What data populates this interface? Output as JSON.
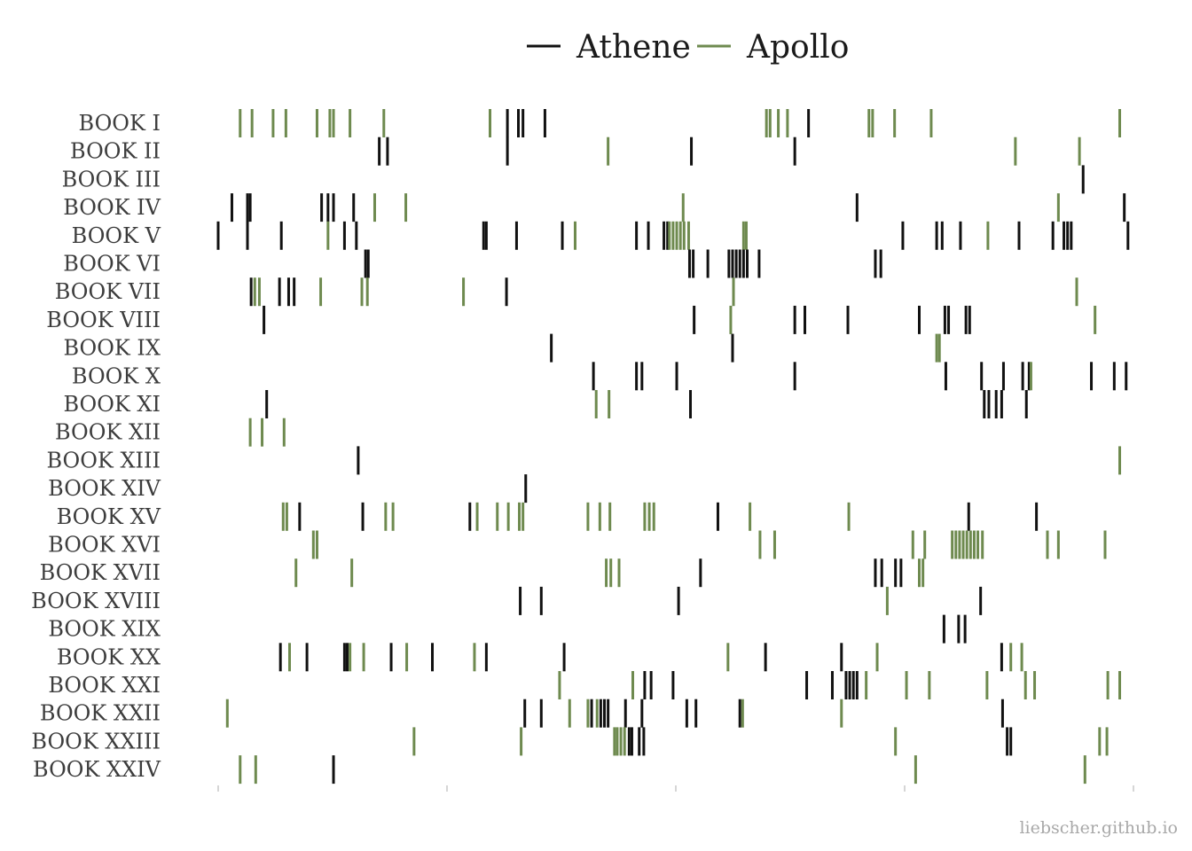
{
  "credit": "liebscher.github.io",
  "colors": {
    "athene": "#111111",
    "apollo": "#6e8a4f",
    "axis": "#bbbbbb"
  },
  "chart_data": {
    "type": "event-plot",
    "xlim": [
      0,
      1
    ],
    "x_ticks": [
      0,
      0.25,
      0.5,
      0.75,
      1
    ],
    "legend": {
      "placement": "top-center"
    },
    "grid": false,
    "series": [
      {
        "name": "Athene",
        "key": "athene"
      },
      {
        "name": "Apollo",
        "key": "apollo"
      }
    ],
    "books": [
      {
        "label": "BOOK I",
        "athene": [
          0.316,
          0.328,
          0.333,
          0.357,
          0.645
        ],
        "apollo": [
          0.024,
          0.037,
          0.06,
          0.074,
          0.108,
          0.122,
          0.126,
          0.144,
          0.181,
          0.297,
          0.599,
          0.603,
          0.612,
          0.622,
          0.711,
          0.715,
          0.739,
          0.779,
          0.985
        ]
      },
      {
        "label": "BOOK II",
        "athene": [
          0.176,
          0.185,
          0.316,
          0.517,
          0.63
        ],
        "apollo": [
          0.426,
          0.871,
          0.941
        ]
      },
      {
        "label": "BOOK III",
        "athene": [
          0.945
        ],
        "apollo": []
      },
      {
        "label": "BOOK IV",
        "athene": [
          0.015,
          0.032,
          0.035,
          0.113,
          0.12,
          0.126,
          0.148,
          0.698,
          0.99
        ],
        "apollo": [
          0.171,
          0.205,
          0.508,
          0.918
        ]
      },
      {
        "label": "BOOK V",
        "athene": [
          0.0,
          0.032,
          0.069,
          0.138,
          0.151,
          0.29,
          0.293,
          0.326,
          0.376,
          0.457,
          0.47,
          0.487,
          0.491,
          0.748,
          0.785,
          0.791,
          0.811,
          0.875,
          0.912,
          0.924,
          0.928,
          0.932,
          0.994
        ],
        "apollo": [
          0.12,
          0.39,
          0.493,
          0.497,
          0.501,
          0.505,
          0.509,
          0.514,
          0.574,
          0.577,
          0.841
        ]
      },
      {
        "label": "BOOK VI",
        "athene": [
          0.161,
          0.164,
          0.515,
          0.519,
          0.535,
          0.558,
          0.562,
          0.566,
          0.57,
          0.574,
          0.578,
          0.591,
          0.718,
          0.724
        ],
        "apollo": []
      },
      {
        "label": "BOOK VII",
        "athene": [
          0.036,
          0.067,
          0.077,
          0.083,
          0.315
        ],
        "apollo": [
          0.04,
          0.045,
          0.112,
          0.157,
          0.163,
          0.268,
          0.563,
          0.938
        ]
      },
      {
        "label": "BOOK VIII",
        "athene": [
          0.05,
          0.52,
          0.63,
          0.641,
          0.688,
          0.766,
          0.794,
          0.798,
          0.817,
          0.821
        ],
        "apollo": [
          0.56,
          0.958
        ]
      },
      {
        "label": "BOOK IX",
        "athene": [
          0.364,
          0.562
        ],
        "apollo": [
          0.785,
          0.788
        ]
      },
      {
        "label": "BOOK X",
        "athene": [
          0.41,
          0.457,
          0.463,
          0.501,
          0.63,
          0.795,
          0.834,
          0.858,
          0.879,
          0.886,
          0.954,
          0.979,
          0.992
        ],
        "apollo": [
          0.888
        ]
      },
      {
        "label": "BOOK XI",
        "athene": [
          0.053,
          0.516,
          0.837,
          0.842,
          0.85,
          0.856,
          0.883
        ],
        "apollo": [
          0.413,
          0.427
        ]
      },
      {
        "label": "BOOK XII",
        "athene": [],
        "apollo": [
          0.035,
          0.048,
          0.072
        ]
      },
      {
        "label": "BOOK XIII",
        "athene": [
          0.153
        ],
        "apollo": [
          0.985
        ]
      },
      {
        "label": "BOOK XIV",
        "athene": [
          0.336
        ],
        "apollo": []
      },
      {
        "label": "BOOK XV",
        "athene": [
          0.089,
          0.158,
          0.275,
          0.546,
          0.82,
          0.894
        ],
        "apollo": [
          0.071,
          0.075,
          0.183,
          0.191,
          0.283,
          0.305,
          0.317,
          0.329,
          0.333,
          0.404,
          0.417,
          0.428,
          0.466,
          0.471,
          0.476,
          0.581,
          0.689
        ]
      },
      {
        "label": "BOOK XVI",
        "athene": [],
        "apollo": [
          0.104,
          0.108,
          0.592,
          0.608,
          0.759,
          0.772,
          0.802,
          0.806,
          0.81,
          0.814,
          0.818,
          0.822,
          0.826,
          0.83,
          0.835,
          0.906,
          0.918,
          0.969
        ]
      },
      {
        "label": "BOOK XVII",
        "athene": [
          0.527,
          0.718,
          0.725,
          0.74,
          0.746
        ],
        "apollo": [
          0.085,
          0.146,
          0.424,
          0.429,
          0.438,
          0.766,
          0.77
        ]
      },
      {
        "label": "BOOK XVIII",
        "athene": [
          0.33,
          0.353,
          0.503,
          0.833
        ],
        "apollo": [
          0.731
        ]
      },
      {
        "label": "BOOK XIX",
        "athene": [
          0.793,
          0.809,
          0.816
        ],
        "apollo": []
      },
      {
        "label": "BOOK XX",
        "athene": [
          0.068,
          0.097,
          0.138,
          0.141,
          0.189,
          0.234,
          0.293,
          0.378,
          0.598,
          0.681,
          0.856
        ],
        "apollo": [
          0.078,
          0.144,
          0.159,
          0.206,
          0.28,
          0.557,
          0.72,
          0.866,
          0.878
        ]
      },
      {
        "label": "BOOK XXI",
        "athene": [
          0.466,
          0.473,
          0.497,
          0.643,
          0.671,
          0.686,
          0.69,
          0.694,
          0.698
        ],
        "apollo": [
          0.373,
          0.453,
          0.708,
          0.752,
          0.777,
          0.84,
          0.882,
          0.892,
          0.972,
          0.985
        ]
      },
      {
        "label": "BOOK XXII",
        "athene": [
          0.335,
          0.353,
          0.408,
          0.418,
          0.422,
          0.426,
          0.445,
          0.463,
          0.512,
          0.522,
          0.57,
          0.857
        ],
        "apollo": [
          0.01,
          0.384,
          0.404,
          0.414,
          0.573,
          0.681
        ]
      },
      {
        "label": "BOOK XXIII",
        "athene": [
          0.449,
          0.452,
          0.46,
          0.465,
          0.862,
          0.866
        ],
        "apollo": [
          0.214,
          0.331,
          0.433,
          0.436,
          0.44,
          0.444,
          0.74,
          0.963,
          0.971
        ]
      },
      {
        "label": "BOOK XXIV",
        "athene": [
          0.126
        ],
        "apollo": [
          0.024,
          0.041,
          0.762,
          0.947
        ]
      }
    ]
  }
}
